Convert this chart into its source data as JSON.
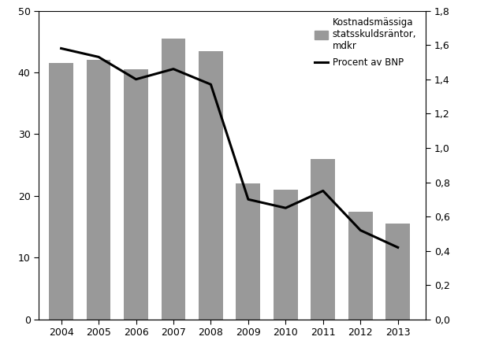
{
  "years": [
    2004,
    2005,
    2006,
    2007,
    2008,
    2009,
    2010,
    2011,
    2012,
    2013
  ],
  "bar_values": [
    41.5,
    42.0,
    40.5,
    45.5,
    43.5,
    22.0,
    21.0,
    26.0,
    17.5,
    15.5
  ],
  "line_values": [
    1.58,
    1.53,
    1.4,
    1.46,
    1.37,
    0.7,
    0.65,
    0.75,
    0.52,
    0.42
  ],
  "bar_color": "#999999",
  "line_color": "#000000",
  "bar_ylim": [
    0,
    50
  ],
  "bar_yticks": [
    0,
    10,
    20,
    30,
    40,
    50
  ],
  "line_ylim": [
    0.0,
    1.8
  ],
  "line_yticks": [
    0.0,
    0.2,
    0.4,
    0.6,
    0.8,
    1.0,
    1.2,
    1.4,
    1.6,
    1.8
  ],
  "legend_bar_label": "Kostnadsmässiga\nstatsskuldsräntor,\nmdkr",
  "legend_line_label": "Procent av BNP",
  "background_color": "#ffffff",
  "bar_width": 0.65,
  "line_width": 2.2
}
